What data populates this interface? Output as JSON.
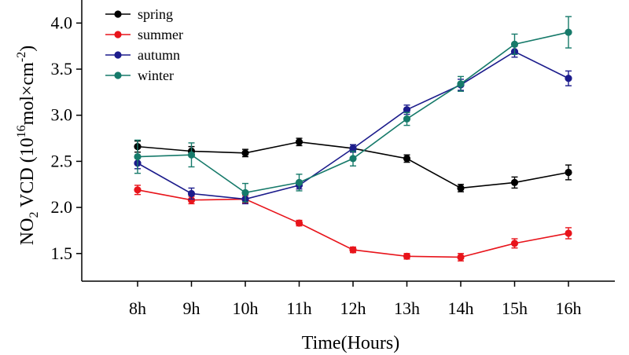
{
  "chart_data": {
    "type": "line",
    "categories": [
      "8h",
      "9h",
      "10h",
      "11h",
      "12h",
      "13h",
      "14h",
      "15h",
      "16h"
    ],
    "xlabel": "Time(Hours)",
    "ylabel": {
      "prefix": "NO",
      "prefix_sub": "2",
      "main": " VCD (10",
      "exp": "16",
      "unit": "mol×cm",
      "unit_exp": "-2",
      "close": ")"
    },
    "ylim": [
      1.2,
      4.25
    ],
    "yticks": [
      1.5,
      2.0,
      2.5,
      3.0,
      3.5,
      4.0
    ],
    "ytick_labels": [
      "1.5",
      "2.0",
      "2.5",
      "3.0",
      "3.5",
      "4.0"
    ],
    "grid": false,
    "legend_position": "top-left",
    "series": [
      {
        "name": "spring",
        "color": "#000000",
        "values": [
          2.66,
          2.61,
          2.59,
          2.71,
          2.64,
          2.53,
          2.21,
          2.27,
          2.38
        ],
        "errors": [
          0.06,
          0.05,
          0.04,
          0.04,
          0.04,
          0.04,
          0.04,
          0.06,
          0.08
        ]
      },
      {
        "name": "summer",
        "color": "#e8141b",
        "values": [
          2.19,
          2.08,
          2.09,
          1.83,
          1.54,
          1.47,
          1.46,
          1.61,
          1.72
        ],
        "errors": [
          0.05,
          0.04,
          0.04,
          0.03,
          0.03,
          0.03,
          0.04,
          0.05,
          0.06
        ]
      },
      {
        "name": "autumn",
        "color": "#1c1c8c",
        "values": [
          2.48,
          2.15,
          2.09,
          2.24,
          2.64,
          3.06,
          3.33,
          3.69,
          3.4
        ],
        "errors": [
          0.06,
          0.06,
          0.05,
          0.04,
          0.04,
          0.05,
          0.06,
          0.06,
          0.08
        ]
      },
      {
        "name": "winter",
        "color": "#167a6a",
        "values": [
          2.55,
          2.57,
          2.16,
          2.27,
          2.53,
          2.96,
          3.34,
          3.77,
          3.9
        ],
        "errors": [
          0.18,
          0.13,
          0.1,
          0.09,
          0.08,
          0.07,
          0.08,
          0.11,
          0.17
        ]
      }
    ]
  }
}
